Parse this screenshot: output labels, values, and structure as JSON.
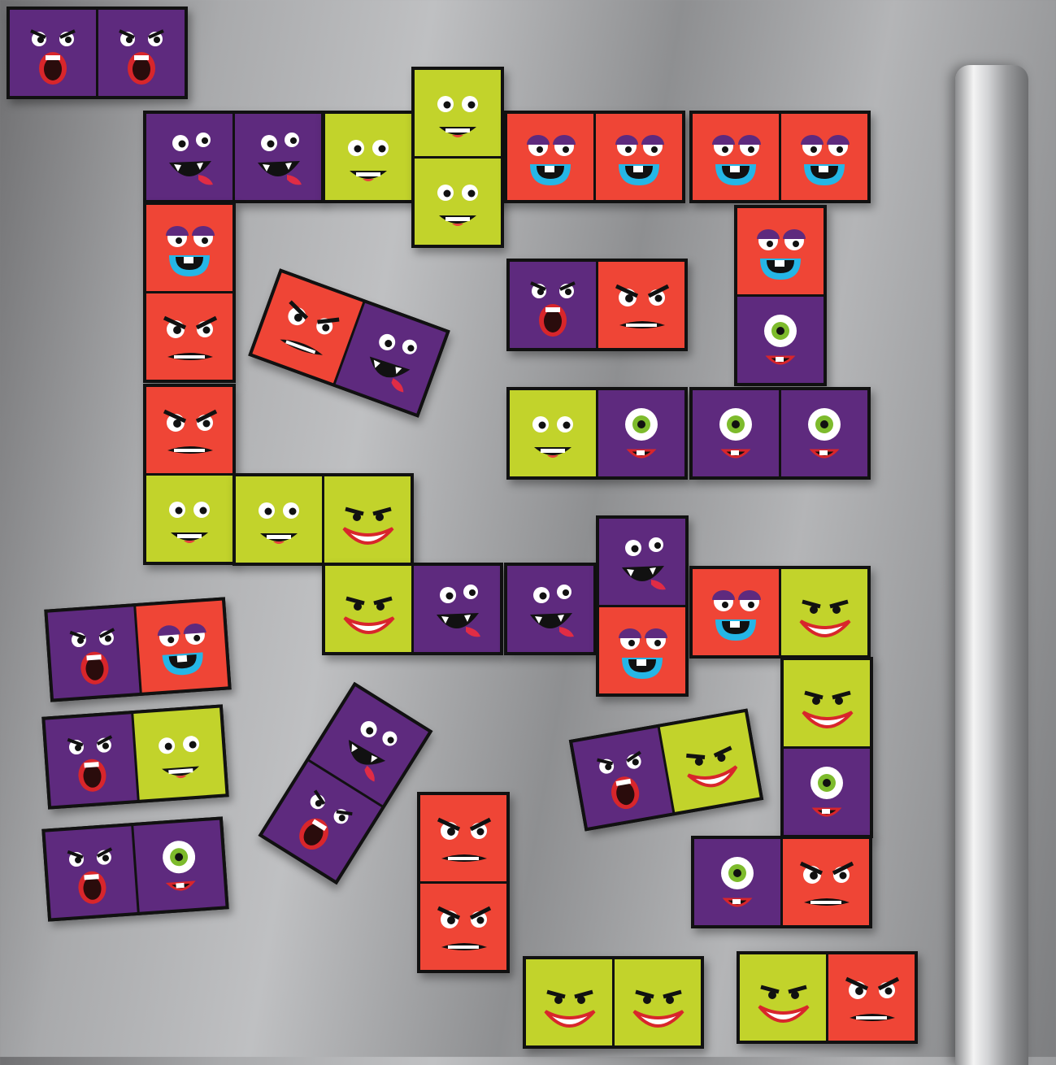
{
  "colors": {
    "purple": "#5e2a7e",
    "red": "#ef4536",
    "lime": "#c2d32b",
    "fridge": "#a9aaac"
  },
  "tiles": [
    {
      "cells": [
        {
          "color": "purple",
          "face": "screamer"
        },
        {
          "color": "purple",
          "face": "screamer"
        }
      ]
    },
    {
      "cells": [
        {
          "color": "purple",
          "face": "fang-tongue"
        },
        {
          "color": "purple",
          "face": "fang-tongue"
        }
      ]
    },
    {
      "cells": [
        {
          "color": "lime",
          "face": "lashes-smile"
        },
        {
          "color": "lime",
          "face": "lashes-smile"
        }
      ]
    },
    {
      "cells": [
        {
          "color": "lime",
          "face": "lashes-smile"
        },
        {
          "color": "lime",
          "face": "lashes-smile"
        }
      ]
    },
    {
      "cells": [
        {
          "color": "red",
          "face": "sleepy-blue-mouth"
        },
        {
          "color": "red",
          "face": "sleepy-blue-mouth"
        }
      ]
    },
    {
      "cells": [
        {
          "color": "red",
          "face": "sleepy-blue-mouth"
        },
        {
          "color": "red",
          "face": "sleepy-blue-mouth"
        }
      ]
    },
    {
      "cells": [
        {
          "color": "red",
          "face": "sleepy-blue-mouth"
        },
        {
          "color": "red",
          "face": "angry-teeth"
        }
      ]
    },
    {
      "cells": [
        {
          "color": "red",
          "face": "angry-teeth"
        },
        {
          "color": "lime",
          "face": "lashes-smile"
        }
      ]
    },
    {
      "cells": [
        {
          "color": "lime",
          "face": "lashes-smile"
        },
        {
          "color": "lime",
          "face": "grin"
        }
      ]
    },
    {
      "cells": [
        {
          "color": "lime",
          "face": "grin"
        },
        {
          "color": "purple",
          "face": "fang-tongue"
        }
      ]
    },
    {
      "cells": [
        {
          "color": "purple",
          "face": "fang-tongue"
        },
        {
          "color": "purple",
          "face": "fang-tongue"
        }
      ]
    },
    {
      "cells": [
        {
          "color": "purple",
          "face": "fang-tongue"
        },
        {
          "color": "red",
          "face": "sleepy-blue-mouth"
        }
      ]
    },
    {
      "cells": [
        {
          "color": "red",
          "face": "sleepy-blue-mouth"
        },
        {
          "color": "lime",
          "face": "grin"
        }
      ]
    },
    {
      "cells": [
        {
          "color": "lime",
          "face": "grin"
        },
        {
          "color": "purple",
          "face": "cyclops"
        }
      ]
    },
    {
      "cells": [
        {
          "color": "purple",
          "face": "cyclops"
        },
        {
          "color": "red",
          "face": "angry-teeth"
        }
      ]
    },
    {
      "cells": [
        {
          "color": "red",
          "face": "angry-teeth"
        },
        {
          "color": "red",
          "face": "angry-teeth"
        }
      ]
    },
    {
      "cells": [
        {
          "color": "purple",
          "face": "screamer"
        },
        {
          "color": "red",
          "face": "angry-teeth"
        }
      ]
    },
    {
      "cells": [
        {
          "color": "red",
          "face": "sleepy-blue-mouth"
        },
        {
          "color": "purple",
          "face": "cyclops"
        }
      ]
    },
    {
      "cells": [
        {
          "color": "lime",
          "face": "lashes-smile"
        },
        {
          "color": "purple",
          "face": "cyclops"
        }
      ]
    },
    {
      "cells": [
        {
          "color": "purple",
          "face": "cyclops"
        },
        {
          "color": "purple",
          "face": "cyclops"
        }
      ]
    },
    {
      "cells": [
        {
          "color": "lime",
          "face": "grin"
        },
        {
          "color": "lime",
          "face": "grin"
        }
      ]
    },
    {
      "cells": [
        {
          "color": "lime",
          "face": "grin"
        },
        {
          "color": "red",
          "face": "angry-teeth"
        }
      ]
    },
    {
      "cells": [
        {
          "color": "purple",
          "face": "screamer"
        },
        {
          "color": "red",
          "face": "sleepy-blue-mouth"
        }
      ]
    },
    {
      "cells": [
        {
          "color": "purple",
          "face": "screamer"
        },
        {
          "color": "lime",
          "face": "lashes-smile"
        }
      ]
    },
    {
      "cells": [
        {
          "color": "purple",
          "face": "screamer"
        },
        {
          "color": "purple",
          "face": "cyclops"
        }
      ]
    },
    {
      "cells": [
        {
          "color": "red",
          "face": "angry-teeth"
        },
        {
          "color": "purple",
          "face": "fang-tongue"
        }
      ]
    },
    {
      "cells": [
        {
          "color": "purple",
          "face": "fang-tongue"
        },
        {
          "color": "purple",
          "face": "screamer"
        }
      ]
    },
    {
      "cells": [
        {
          "color": "purple",
          "face": "screamer"
        },
        {
          "color": "lime",
          "face": "grin"
        }
      ]
    }
  ]
}
